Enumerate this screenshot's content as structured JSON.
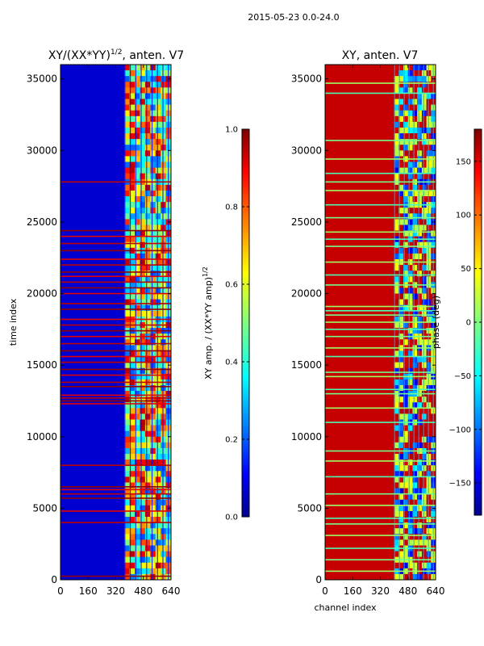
{
  "suptitle": "2015-05-23 0.0-24.0",
  "chart_data": [
    {
      "type": "heatmap",
      "title": "XY/(XX*YY)^{1/2}, anten. V7",
      "title_main": "XY/(XX*YY)",
      "title_exp": "1/2",
      "title_tail": ", anten. V7",
      "xlabel": "",
      "ylabel": "time index",
      "xlim": [
        0,
        640
      ],
      "ylim": [
        0,
        36000
      ],
      "xticks": [
        0,
        160,
        320,
        480,
        640
      ],
      "yticks": [
        0,
        5000,
        10000,
        15000,
        20000,
        25000,
        30000,
        35000
      ],
      "colormap": "jet",
      "colorbar": {
        "label": "XY amp. / (XX*YY amp)^{1/2}",
        "label_main": "XY amp. / (XX*YY amp)",
        "label_exp": "1/2",
        "range": [
          0.0,
          1.0
        ],
        "ticks": [
          "0.0",
          "0.2",
          "0.4",
          "0.6",
          "0.8",
          "1.0"
        ],
        "tick_values": [
          0.0,
          0.2,
          0.4,
          0.6,
          0.8,
          1.0
        ]
      },
      "background_value": 0.08,
      "flagged_rows_value": 0.98,
      "flagged_rows": [
        250,
        4000,
        4800,
        5700,
        6000,
        6300,
        6500,
        8000,
        12300,
        12500,
        12700,
        12900,
        13500,
        13800,
        14300,
        14700,
        15200,
        15600,
        16000,
        16500,
        17000,
        17400,
        17800,
        18200,
        18900,
        19300,
        20000,
        20400,
        20800,
        21200,
        21500,
        22000,
        22400,
        23000,
        23500,
        24000,
        24400,
        27800
      ],
      "band_start_channel": 370,
      "band_end_channel": 640
    },
    {
      "type": "heatmap",
      "title": "XY, anten. V7",
      "xlabel": "channel index",
      "ylabel": "",
      "xlim": [
        0,
        640
      ],
      "ylim": [
        0,
        36000
      ],
      "xticks": [
        0,
        160,
        320,
        480,
        640
      ],
      "yticks": [
        0,
        5000,
        10000,
        15000,
        20000,
        25000,
        30000,
        35000
      ],
      "colormap": "jet",
      "colorbar": {
        "label": "phase (deg)",
        "range": [
          -180,
          180
        ],
        "ticks": [
          "−150",
          "−100",
          "−50",
          "0",
          "50",
          "100",
          "150"
        ],
        "tick_values": [
          -150,
          -100,
          -50,
          0,
          50,
          100,
          150
        ]
      },
      "background_value": 155,
      "flagged_rows_value": 10,
      "flagged_rows": [
        600,
        1400,
        2200,
        3100,
        3900,
        4300,
        5200,
        6000,
        7200,
        8300,
        9000,
        11000,
        12000,
        13000,
        13300,
        14200,
        14500,
        15600,
        16200,
        17000,
        17500,
        18000,
        18500,
        18800,
        19100,
        20600,
        21300,
        22200,
        23300,
        23800,
        24300,
        25300,
        26200,
        27200,
        27800,
        28400,
        29400,
        30700,
        34000,
        34700
      ],
      "band_start_channel": 400,
      "band_end_channel": 640
    }
  ],
  "colors": {
    "jet_dark_blue": "#00008f",
    "jet_blue": "#0000ff",
    "jet_cyan": "#00ffff",
    "jet_yellow": "#ffff00",
    "jet_red": "#ff0000",
    "jet_dark_red": "#800000"
  }
}
